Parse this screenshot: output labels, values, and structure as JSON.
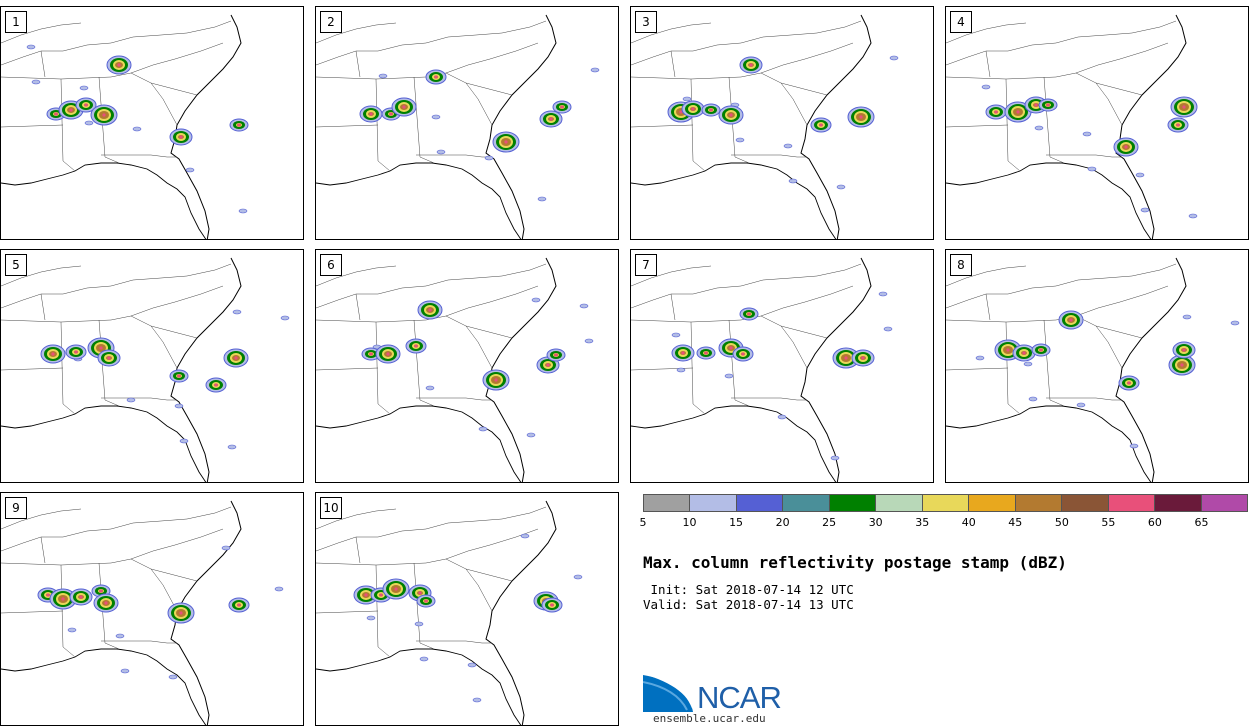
{
  "panels": [
    {
      "label": "1",
      "member": 1
    },
    {
      "label": "2",
      "member": 2
    },
    {
      "label": "3",
      "member": 3
    },
    {
      "label": "4",
      "member": 4
    },
    {
      "label": "5",
      "member": 5
    },
    {
      "label": "6",
      "member": 6
    },
    {
      "label": "7",
      "member": 7
    },
    {
      "label": "8",
      "member": 8
    },
    {
      "label": "9",
      "member": 9
    },
    {
      "label": "10",
      "member": 10
    }
  ],
  "colorbar": {
    "colors": [
      "#a0a0a0",
      "#b3bde6",
      "#5560d4",
      "#4a8f99",
      "#008000",
      "#b8d8b8",
      "#e8d85a",
      "#e8a81e",
      "#b37a30",
      "#8a5536",
      "#e8507a",
      "#6a1a3a",
      "#b04aa8"
    ],
    "ticks": [
      "5",
      "10",
      "15",
      "20",
      "25",
      "30",
      "35",
      "40",
      "45",
      "50",
      "55",
      "60",
      "65"
    ]
  },
  "title": "Max. column reflectivity postage stamp (dBZ)",
  "init": " Init: Sat 2018-07-14 12 UTC",
  "valid": "Valid: Sat 2018-07-14 13 UTC",
  "logo": {
    "text": "NCAR",
    "site": "ensemble.ucar.edu"
  }
}
